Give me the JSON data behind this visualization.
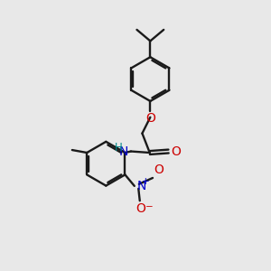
{
  "bg_color": "#e8e8e8",
  "line_color": "#1a1a1a",
  "oxygen_color": "#cc0000",
  "nitrogen_color": "#0000cc",
  "nitrogen_h_color": "#008888",
  "bond_lw": 1.7,
  "font_size": 9.5,
  "fig_w": 3.0,
  "fig_h": 3.0,
  "dpi": 100,
  "xlim": [
    0,
    10
  ],
  "ylim": [
    0,
    10
  ]
}
